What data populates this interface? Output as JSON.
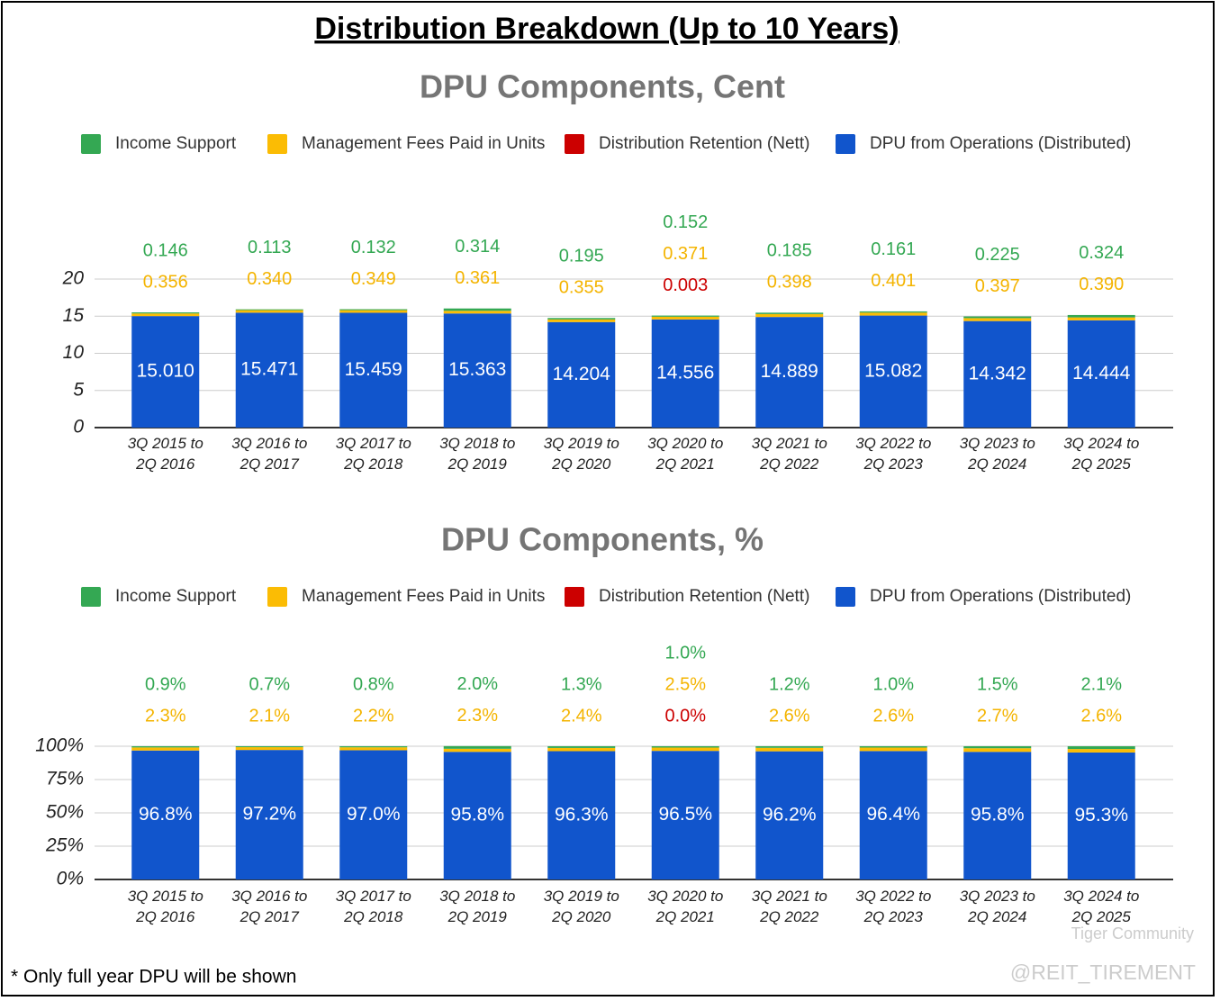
{
  "title": "Distribution Breakdown (Up to 10 Years)",
  "footnote": "* Only full year DPU will be shown",
  "watermark": [
    "Tiger Community",
    "@REIT_TIREMENT"
  ],
  "chart_data": [
    {
      "type": "bar",
      "stacked": true,
      "title": "DPU Components, Cent",
      "categories": [
        "3Q 2015 to 2Q 2016",
        "3Q 2016 to 2Q 2017",
        "3Q 2017 to 2Q 2018",
        "3Q 2018 to 2Q 2019",
        "3Q 2019 to 2Q 2020",
        "3Q 2020 to 2Q 2021",
        "3Q 2021 to 2Q 2022",
        "3Q 2022 to 2Q 2023",
        "3Q 2023 to 2Q 2024",
        "3Q 2024 to 2Q 2025"
      ],
      "series": [
        {
          "name": "Income Support",
          "color": "#34a853",
          "label_color": "#34a853",
          "values": [
            0.146,
            0.113,
            0.132,
            0.314,
            0.195,
            0.152,
            0.185,
            0.161,
            0.225,
            0.324
          ],
          "value_labels": [
            "0.146",
            "0.113",
            "0.132",
            "0.314",
            "0.195",
            "0.152",
            "0.185",
            "0.161",
            "0.225",
            "0.324"
          ]
        },
        {
          "name": "Management Fees Paid in Units",
          "color": "#fbbc04",
          "label_color": "#f4b400",
          "values": [
            0.356,
            0.34,
            0.349,
            0.361,
            0.355,
            0.371,
            0.398,
            0.401,
            0.397,
            0.39
          ],
          "value_labels": [
            "0.356",
            "0.340",
            "0.349",
            "0.361",
            "0.355",
            "0.371",
            "0.398",
            "0.401",
            "0.397",
            "0.390"
          ]
        },
        {
          "name": "Distribution Retention (Nett)",
          "color": "#cc0000",
          "label_color": "#cc0000",
          "values": [
            null,
            null,
            null,
            null,
            null,
            0.003,
            null,
            null,
            null,
            null
          ],
          "value_labels": [
            null,
            null,
            null,
            null,
            null,
            "0.003",
            null,
            null,
            null,
            null
          ]
        },
        {
          "name": "DPU from Operations (Distributed)",
          "color": "#1155cc",
          "label_color": "#ffffff",
          "values": [
            15.01,
            15.471,
            15.459,
            15.363,
            14.204,
            14.556,
            14.889,
            15.082,
            14.342,
            14.444
          ],
          "value_labels": [
            "15.010",
            "15.471",
            "15.459",
            "15.363",
            "14.204",
            "14.556",
            "14.889",
            "15.082",
            "14.342",
            "14.444"
          ]
        }
      ],
      "ylim": [
        0,
        20
      ],
      "yticks": [
        0,
        5,
        10,
        15,
        20
      ],
      "grid": true,
      "legend": "top"
    },
    {
      "type": "bar",
      "stacked": true,
      "title": "DPU Components, %",
      "categories": [
        "3Q 2015 to 2Q 2016",
        "3Q 2016 to 2Q 2017",
        "3Q 2017 to 2Q 2018",
        "3Q 2018 to 2Q 2019",
        "3Q 2019 to 2Q 2020",
        "3Q 2020 to 2Q 2021",
        "3Q 2021 to 2Q 2022",
        "3Q 2022 to 2Q 2023",
        "3Q 2023 to 2Q 2024",
        "3Q 2024 to 2Q 2025"
      ],
      "series": [
        {
          "name": "Income Support",
          "color": "#34a853",
          "label_color": "#34a853",
          "values": [
            0.9,
            0.7,
            0.8,
            2.0,
            1.3,
            1.0,
            1.2,
            1.0,
            1.5,
            2.1
          ],
          "value_labels": [
            "0.9%",
            "0.7%",
            "0.8%",
            "2.0%",
            "1.3%",
            "1.0%",
            "1.2%",
            "1.0%",
            "1.5%",
            "2.1%"
          ]
        },
        {
          "name": "Management Fees Paid in Units",
          "color": "#fbbc04",
          "label_color": "#f4b400",
          "values": [
            2.3,
            2.1,
            2.2,
            2.3,
            2.4,
            2.5,
            2.6,
            2.6,
            2.7,
            2.6
          ],
          "value_labels": [
            "2.3%",
            "2.1%",
            "2.2%",
            "2.3%",
            "2.4%",
            "2.5%",
            "2.6%",
            "2.6%",
            "2.7%",
            "2.6%"
          ]
        },
        {
          "name": "Distribution Retention (Nett)",
          "color": "#cc0000",
          "label_color": "#cc0000",
          "values": [
            null,
            null,
            null,
            null,
            null,
            0.0,
            null,
            null,
            null,
            null
          ],
          "value_labels": [
            null,
            null,
            null,
            null,
            null,
            "0.0%",
            null,
            null,
            null,
            null
          ]
        },
        {
          "name": "DPU from Operations (Distributed)",
          "color": "#1155cc",
          "label_color": "#ffffff",
          "values": [
            96.8,
            97.2,
            97.0,
            95.8,
            96.3,
            96.5,
            96.2,
            96.4,
            95.8,
            95.3
          ],
          "value_labels": [
            "96.8%",
            "97.2%",
            "97.0%",
            "95.8%",
            "96.3%",
            "96.5%",
            "96.2%",
            "96.4%",
            "95.8%",
            "95.3%"
          ]
        }
      ],
      "ylim": [
        0,
        100
      ],
      "yticks": [
        {
          "value": 0,
          "label": "0%"
        },
        {
          "value": 25,
          "label": "25%"
        },
        {
          "value": 50,
          "label": "50%"
        },
        {
          "value": 75,
          "label": "75%"
        },
        {
          "value": 100,
          "label": "100%"
        }
      ],
      "grid": true,
      "legend": "top"
    }
  ]
}
